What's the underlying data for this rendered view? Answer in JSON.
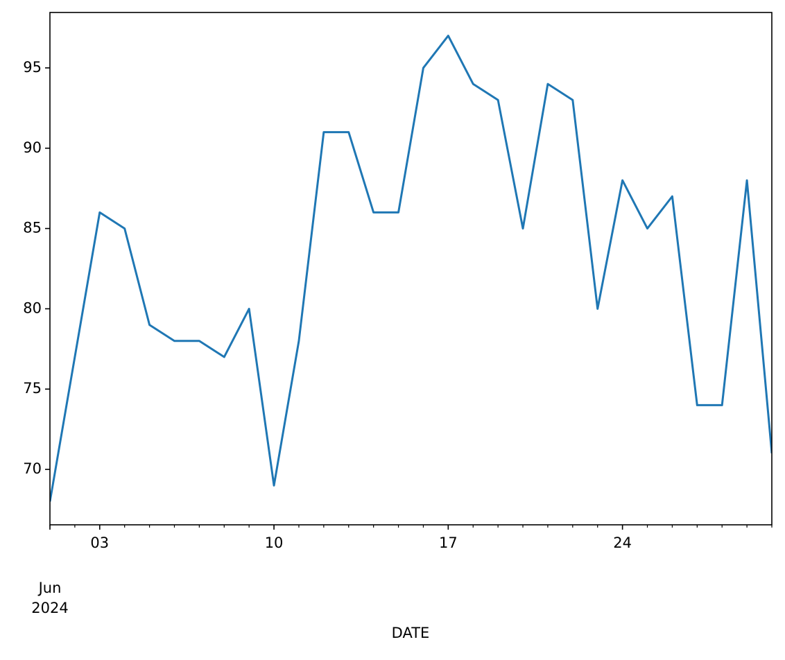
{
  "chart_data": {
    "type": "line",
    "x": [
      "2024-06-01",
      "2024-06-02",
      "2024-06-03",
      "2024-06-04",
      "2024-06-05",
      "2024-06-06",
      "2024-06-07",
      "2024-06-08",
      "2024-06-09",
      "2024-06-10",
      "2024-06-11",
      "2024-06-12",
      "2024-06-13",
      "2024-06-14",
      "2024-06-15",
      "2024-06-16",
      "2024-06-17",
      "2024-06-18",
      "2024-06-19",
      "2024-06-20",
      "2024-06-21",
      "2024-06-22",
      "2024-06-23",
      "2024-06-24",
      "2024-06-25",
      "2024-06-26",
      "2024-06-27",
      "2024-06-28",
      "2024-06-29",
      "2024-06-30"
    ],
    "series": [
      {
        "color": "#1f77b4",
        "values": [
          68,
          77,
          86,
          85,
          79,
          78,
          78,
          77,
          80,
          69,
          78,
          91,
          91,
          86,
          86,
          95,
          97,
          94,
          93,
          85,
          94,
          93,
          80,
          88,
          85,
          87,
          74,
          74,
          88,
          71
        ]
      }
    ],
    "xlabel": "DATE",
    "xlim": [
      "2024-06-01",
      "2024-06-30"
    ],
    "xticks": [
      {
        "value": "2024-06-03",
        "label": "03"
      },
      {
        "value": "2024-06-10",
        "label": "10"
      },
      {
        "value": "2024-06-17",
        "label": "17"
      },
      {
        "value": "2024-06-24",
        "label": "24"
      }
    ],
    "x_period_label": {
      "value": "2024-06-01",
      "label": [
        "Jun",
        "2024"
      ]
    },
    "ylim": [
      66.55,
      98.45
    ],
    "yticks": [
      70,
      75,
      80,
      85,
      90,
      95
    ],
    "grid": false
  }
}
